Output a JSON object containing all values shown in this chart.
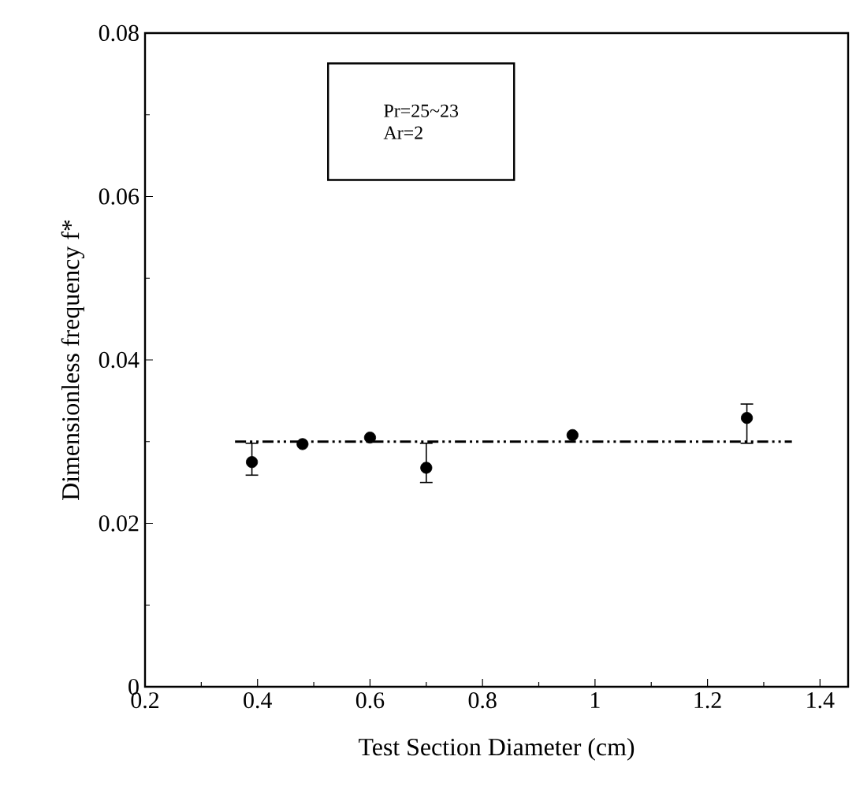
{
  "chart_data": {
    "type": "scatter",
    "xlabel": "Test Section Diameter (cm)",
    "ylabel": "Dimensionless frequency f*",
    "xlim": [
      0.2,
      1.45
    ],
    "ylim": [
      0,
      0.08
    ],
    "xticks": [
      {
        "value": 0.2,
        "label": "0.2"
      },
      {
        "value": 0.4,
        "label": "0.4"
      },
      {
        "value": 0.6,
        "label": "0.6"
      },
      {
        "value": 0.8,
        "label": "0.8"
      },
      {
        "value": 1,
        "label": "1"
      },
      {
        "value": 1.2,
        "label": "1.2"
      },
      {
        "value": 1.4,
        "label": "1.4"
      }
    ],
    "yticks": [
      {
        "value": 0,
        "label": "0"
      },
      {
        "value": 0.02,
        "label": "0.02"
      },
      {
        "value": 0.04,
        "label": "0.04"
      },
      {
        "value": 0.06,
        "label": "0.06"
      },
      {
        "value": 0.08,
        "label": "0.08"
      }
    ],
    "annotations": [
      "Pr=25~23",
      "Ar=2"
    ],
    "series": [
      {
        "color": "#000000",
        "marker": "circle",
        "x": [
          0.39,
          0.48,
          0.6,
          0.7,
          0.96,
          1.27
        ],
        "values": [
          0.0275,
          0.0297,
          0.0305,
          0.0268,
          0.0308,
          0.0329
        ],
        "errors": [
          [
            0.0259,
            0.0298
          ],
          null,
          null,
          [
            0.025,
            0.0298
          ],
          null,
          [
            0.0298,
            0.0346
          ]
        ]
      },
      {
        "type": "line",
        "color": "#000000",
        "line_style": "dashed",
        "marker": "none",
        "x": [
          0.36,
          1.35
        ],
        "values": [
          0.03,
          0.03
        ]
      }
    ]
  }
}
